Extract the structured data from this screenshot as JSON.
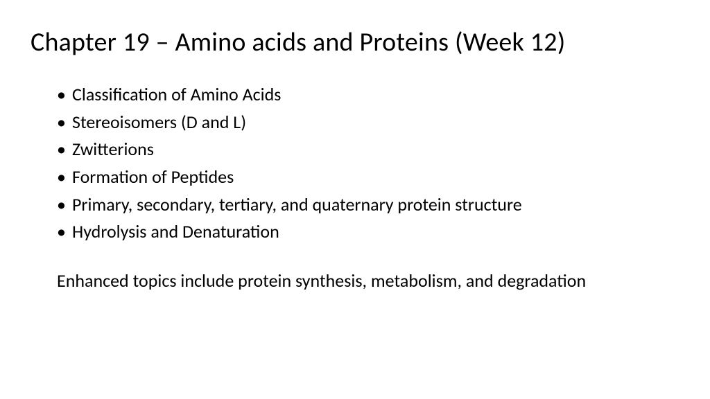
{
  "slide": {
    "title": "Chapter 19 – Amino acids and Proteins (Week 12)",
    "bullets": [
      "Classification of Amino Acids",
      "Stereoisomers (D and L)",
      "Zwitterions",
      "Formation of Peptides",
      "Primary, secondary, tertiary, and quaternary protein structure",
      "Hydrolysis and Denaturation"
    ],
    "enhanced_text": "Enhanced topics include protein synthesis, metabolism, and degradation",
    "background_color": "#ffffff",
    "text_color": "#000000",
    "title_fontsize": 38,
    "body_fontsize": 26,
    "font_family": "Calibri"
  }
}
